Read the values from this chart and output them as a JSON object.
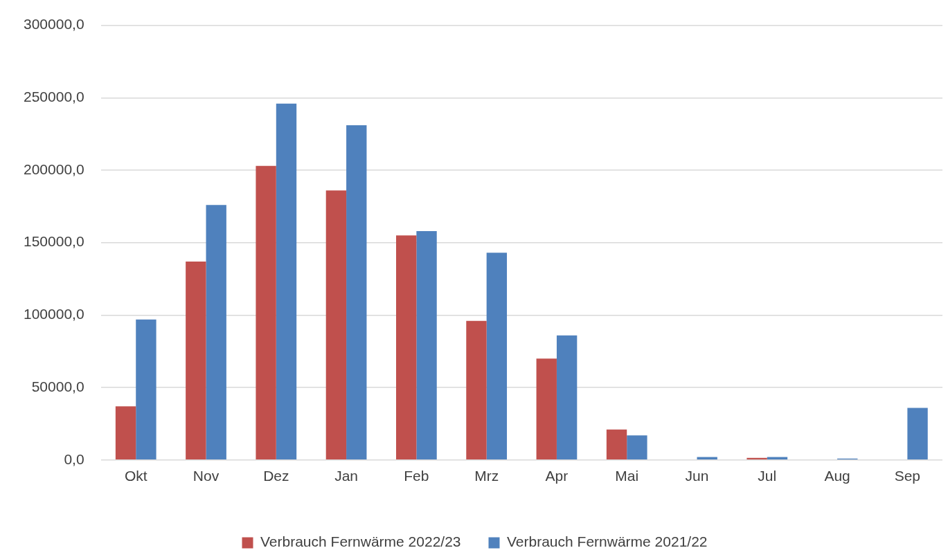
{
  "chart_data": {
    "type": "bar",
    "categories": [
      "Okt",
      "Nov",
      "Dez",
      "Jan",
      "Feb",
      "Mrz",
      "Apr",
      "Mai",
      "Jun",
      "Jul",
      "Aug",
      "Sep"
    ],
    "series": [
      {
        "name": "Verbrauch Fernwärme 2022/23",
        "color": "#c0504d",
        "values": [
          37000,
          137000,
          203000,
          186000,
          155000,
          96000,
          70000,
          21000,
          0,
          1500,
          0,
          0
        ]
      },
      {
        "name": "Verbrauch Fernwärme 2021/22",
        "color": "#4f81bd",
        "values": [
          97000,
          176000,
          246000,
          231000,
          158000,
          143000,
          86000,
          17000,
          2000,
          2000,
          1000,
          36000
        ]
      }
    ],
    "ylim": [
      0,
      300000
    ],
    "yticks": [
      {
        "value": 0,
        "label": "0,0"
      },
      {
        "value": 50000,
        "label": "50000,0"
      },
      {
        "value": 100000,
        "label": "100000,0"
      },
      {
        "value": 150000,
        "label": "150000,0"
      },
      {
        "value": 200000,
        "label": "200000,0"
      },
      {
        "value": 250000,
        "label": "250000,0"
      },
      {
        "value": 300000,
        "label": "300000,0"
      }
    ],
    "grid": "y",
    "legend": "bottom"
  }
}
